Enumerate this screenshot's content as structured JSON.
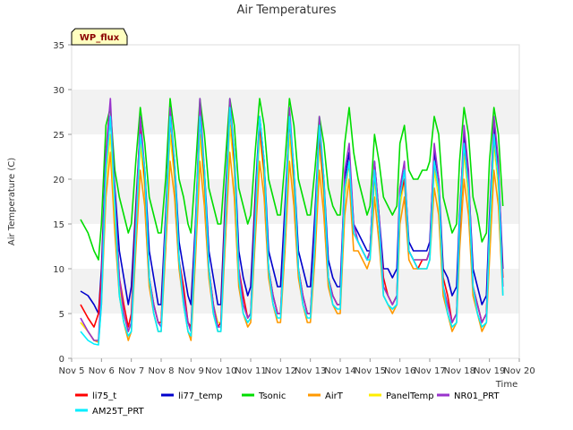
{
  "chart_data": {
    "type": "line",
    "title": "Air Temperatures",
    "xlabel": "Time",
    "ylabel": "Air Temperature (C)",
    "badge": "WP_flux",
    "ylim": [
      0,
      35
    ],
    "yticks": [
      0,
      5,
      10,
      15,
      20,
      25,
      30,
      35
    ],
    "xlim": [
      5,
      20
    ],
    "xticks": [
      5,
      6,
      7,
      8,
      9,
      10,
      11,
      12,
      13,
      14,
      15,
      16,
      17,
      18,
      19,
      20
    ],
    "xtick_labels": [
      "Nov 5",
      "Nov 6",
      "Nov 7",
      "Nov 8",
      "Nov 9",
      "Nov 10",
      "Nov 11",
      "Nov 12",
      "Nov 13",
      "Nov 14",
      "Nov 15",
      "Nov 16",
      "Nov 17",
      "Nov 18",
      "Nov 19",
      "Nov 20"
    ],
    "grid": "horizontal bands",
    "legend_position": "bottom",
    "x": [
      5.3,
      5.55,
      5.75,
      5.9,
      6.0,
      6.15,
      6.3,
      6.45,
      6.6,
      6.75,
      6.9,
      7.0,
      7.15,
      7.3,
      7.45,
      7.6,
      7.75,
      7.9,
      8.0,
      8.15,
      8.3,
      8.45,
      8.6,
      8.75,
      8.9,
      9.0,
      9.15,
      9.3,
      9.45,
      9.6,
      9.75,
      9.9,
      10.0,
      10.15,
      10.3,
      10.45,
      10.6,
      10.75,
      10.9,
      11.0,
      11.15,
      11.3,
      11.45,
      11.6,
      11.75,
      11.9,
      12.0,
      12.15,
      12.3,
      12.45,
      12.6,
      12.75,
      12.9,
      13.0,
      13.15,
      13.3,
      13.45,
      13.6,
      13.75,
      13.9,
      14.0,
      14.15,
      14.3,
      14.45,
      14.6,
      14.75,
      14.9,
      15.0,
      15.15,
      15.3,
      15.45,
      15.6,
      15.75,
      15.9,
      16.0,
      16.15,
      16.3,
      16.45,
      16.6,
      16.75,
      16.9,
      17.0,
      17.15,
      17.3,
      17.45,
      17.6,
      17.75,
      17.9,
      18.0,
      18.15,
      18.3,
      18.45,
      18.6,
      18.75,
      18.9,
      19.0,
      19.15,
      19.3,
      19.45
    ],
    "series": [
      {
        "name": "li75_t",
        "color": "#ff0000",
        "values": [
          6,
          4.5,
          3.5,
          5,
          9,
          22,
          27,
          18,
          9,
          6,
          3.5,
          5,
          16,
          26,
          20,
          9,
          6,
          4,
          4,
          15,
          27,
          21,
          11,
          8,
          4,
          3.5,
          14,
          27,
          20,
          10,
          6,
          3.5,
          4,
          17,
          28,
          22,
          10,
          7,
          4.5,
          5,
          17,
          26,
          21,
          10,
          7,
          5,
          5,
          15,
          27,
          20,
          10,
          7,
          5,
          5,
          14,
          25,
          19,
          9,
          7,
          6,
          6,
          19,
          22,
          14,
          13,
          12,
          11,
          12,
          21,
          15,
          9,
          7,
          6,
          7,
          18,
          20,
          12,
          11,
          10,
          11,
          11,
          12,
          22,
          19,
          9,
          7,
          4,
          5,
          14,
          24,
          19,
          8,
          6,
          4,
          5,
          14,
          25,
          20,
          9
        ]
      },
      {
        "name": "li77_temp",
        "color": "#0000cc",
        "values": [
          7.5,
          7,
          6,
          5,
          10,
          23,
          27,
          19,
          12,
          9,
          6,
          8,
          17,
          26,
          21,
          12,
          9,
          6,
          6,
          16,
          27,
          22,
          13,
          10,
          7,
          6,
          15,
          27,
          21,
          12,
          9,
          6,
          6,
          18,
          28,
          23,
          12,
          9,
          7,
          8,
          18,
          27,
          22,
          12,
          10,
          8,
          8,
          17,
          27,
          21,
          12,
          10,
          8,
          8,
          16,
          26,
          20,
          11,
          9,
          8,
          8,
          20,
          23,
          15,
          14,
          13,
          12,
          12,
          22,
          16,
          10,
          10,
          9,
          10,
          19,
          21,
          13,
          12,
          12,
          12,
          12,
          13,
          23,
          20,
          10,
          9,
          7,
          8,
          16,
          25,
          20,
          10,
          8,
          6,
          7,
          16,
          26,
          21,
          10
        ]
      },
      {
        "name": "Tsonic",
        "color": "#00dd00",
        "values": [
          15.5,
          14,
          12,
          11,
          15,
          26,
          28,
          21,
          18,
          16,
          14,
          15,
          22,
          28,
          24,
          18,
          16,
          14,
          14,
          20,
          29,
          25,
          20,
          18,
          15,
          14,
          21,
          29,
          25,
          19,
          17,
          15,
          15,
          22,
          29,
          26,
          19,
          17,
          15,
          16,
          23,
          29,
          26,
          20,
          18,
          16,
          16,
          22,
          29,
          26,
          20,
          18,
          16,
          16,
          21,
          27,
          24,
          19,
          17,
          16,
          16,
          24,
          28,
          23,
          20,
          18,
          16,
          17,
          25,
          22,
          18,
          17,
          16,
          17,
          24,
          26,
          21,
          20,
          20,
          21,
          21,
          22,
          27,
          25,
          18,
          16,
          14,
          15,
          22,
          28,
          25,
          18,
          16,
          13,
          14,
          22,
          28,
          25,
          17
        ]
      },
      {
        "name": "AirT",
        "color": "#ff9900",
        "values": [
          4,
          3,
          2,
          1.8,
          6,
          18,
          23,
          14,
          7,
          4,
          2,
          3,
          12,
          21,
          17,
          8,
          5,
          3,
          3,
          12,
          22,
          18,
          10,
          6,
          3,
          2,
          11,
          22,
          17,
          9,
          5,
          3,
          3,
          13,
          23,
          18,
          8,
          5,
          3.5,
          4,
          13,
          22,
          18,
          9,
          6,
          4,
          4,
          12,
          22,
          17,
          9,
          6,
          4,
          4,
          11,
          21,
          16,
          8,
          6,
          5,
          5,
          16,
          20,
          12,
          12,
          11,
          10,
          11,
          18,
          13,
          7,
          6,
          5,
          6,
          15,
          18,
          11,
          10,
          10,
          10,
          10,
          11,
          19,
          16,
          7,
          5,
          3,
          4,
          12,
          20,
          16,
          7,
          5,
          3,
          4,
          11,
          21,
          17,
          7
        ]
      },
      {
        "name": "PanelTemp",
        "color": "#ffee00",
        "values": [
          4,
          3,
          2,
          2,
          7,
          20,
          25,
          16,
          8,
          5,
          3,
          4,
          14,
          24,
          19,
          9,
          6,
          4,
          4,
          14,
          25,
          20,
          11,
          7,
          4,
          3,
          13,
          25,
          19,
          10,
          6,
          4,
          4,
          15,
          26,
          21,
          9,
          6,
          4.5,
          5,
          15,
          25,
          20,
          10,
          7,
          5,
          5,
          14,
          25,
          19,
          10,
          7,
          5,
          5,
          13,
          24,
          18,
          9,
          7,
          6,
          6,
          18,
          22,
          14,
          13,
          12,
          11,
          12,
          20,
          15,
          8,
          7,
          6,
          7,
          17,
          20,
          12,
          11,
          11,
          11,
          11,
          12,
          21,
          18,
          8,
          6,
          4,
          5,
          14,
          23,
          18,
          8,
          6,
          4,
          5,
          13,
          24,
          19,
          8
        ]
      },
      {
        "name": "NR01_PRT",
        "color": "#9933cc",
        "values": [
          4.5,
          3,
          2,
          2,
          8,
          23,
          29,
          18,
          9,
          5,
          3,
          4,
          15,
          27,
          21,
          9,
          6,
          4,
          3.5,
          15,
          28,
          22,
          11,
          7,
          4,
          3,
          14,
          29,
          21,
          10,
          6,
          3.5,
          3.5,
          16,
          29,
          23,
          10,
          6,
          4.5,
          5,
          16,
          27,
          22,
          10,
          7,
          5,
          5,
          15,
          28,
          21,
          10,
          7,
          5,
          5,
          14,
          27,
          20,
          9,
          7,
          6,
          6,
          21,
          24,
          15,
          13,
          12,
          11,
          12,
          22,
          16,
          8,
          7,
          6,
          7,
          19,
          22,
          12,
          11,
          11,
          11,
          11,
          12,
          24,
          20,
          8,
          6,
          4,
          5,
          15,
          26,
          21,
          8,
          6,
          4,
          5,
          15,
          27,
          22,
          8
        ]
      },
      {
        "name": "AM25T_PRT",
        "color": "#00eeff",
        "values": [
          3,
          2,
          1.6,
          1.5,
          6,
          21,
          27,
          17,
          7,
          4,
          2.5,
          3,
          14,
          25,
          21,
          9,
          5,
          3,
          3,
          14,
          27,
          22,
          11,
          6,
          3,
          2.5,
          13,
          27,
          21,
          10,
          5,
          3,
          3,
          15,
          28,
          23,
          9,
          5,
          4,
          4.5,
          15,
          27,
          22,
          10,
          6,
          4.5,
          4.5,
          14,
          27,
          21,
          10,
          6,
          4.5,
          4.5,
          13,
          26,
          20,
          9,
          6,
          5.5,
          5.5,
          19,
          22,
          14,
          13,
          12,
          11,
          11,
          21,
          15,
          7,
          6,
          5.5,
          6,
          18,
          21,
          12,
          11,
          10,
          10,
          10,
          11,
          22,
          19,
          8,
          5,
          3.5,
          4,
          15,
          24,
          19,
          8,
          5,
          3.5,
          4,
          14,
          25,
          20,
          7
        ]
      }
    ]
  }
}
